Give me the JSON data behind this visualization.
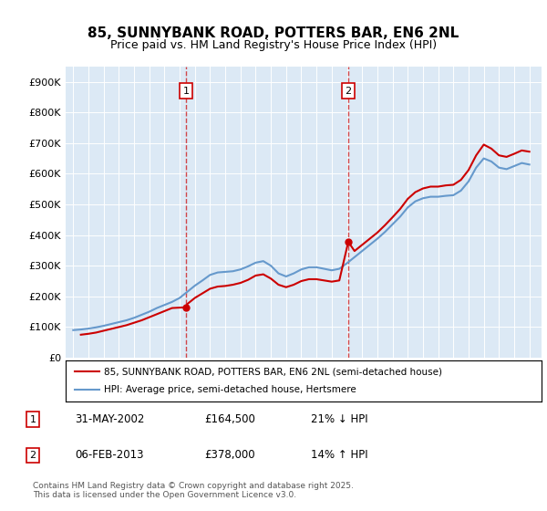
{
  "title": "85, SUNNYBANK ROAD, POTTERS BAR, EN6 2NL",
  "subtitle": "Price paid vs. HM Land Registry's House Price Index (HPI)",
  "legend_line1": "85, SUNNYBANK ROAD, POTTERS BAR, EN6 2NL (semi-detached house)",
  "legend_line2": "HPI: Average price, semi-detached house, Hertsmere",
  "footer": "Contains HM Land Registry data © Crown copyright and database right 2025.\nThis data is licensed under the Open Government Licence v3.0.",
  "sale1_date": "31-MAY-2002",
  "sale1_price": 164500,
  "sale1_pct": "21% ↓ HPI",
  "sale2_date": "06-FEB-2013",
  "sale2_price": 378000,
  "sale2_pct": "14% ↑ HPI",
  "vline1_x": 2002.42,
  "vline2_x": 2013.09,
  "ylim": [
    0,
    950000
  ],
  "xlim_left": 1994.5,
  "xlim_right": 2025.8,
  "background_color": "#dce9f5",
  "plot_bg_color": "#dce9f5",
  "red_color": "#cc0000",
  "blue_color": "#6699cc",
  "hpi_data_x": [
    1995,
    1995.5,
    1996,
    1996.5,
    1997,
    1997.5,
    1998,
    1998.5,
    1999,
    1999.5,
    2000,
    2000.5,
    2001,
    2001.5,
    2002,
    2002.5,
    2003,
    2003.5,
    2004,
    2004.5,
    2005,
    2005.5,
    2006,
    2006.5,
    2007,
    2007.5,
    2008,
    2008.5,
    2009,
    2009.5,
    2010,
    2010.5,
    2011,
    2011.5,
    2012,
    2012.5,
    2013,
    2013.5,
    2014,
    2014.5,
    2015,
    2015.5,
    2016,
    2016.5,
    2017,
    2017.5,
    2018,
    2018.5,
    2019,
    2019.5,
    2020,
    2020.5,
    2021,
    2021.5,
    2022,
    2022.5,
    2023,
    2023.5,
    2024,
    2024.5,
    2025
  ],
  "hpi_data_y": [
    90000,
    92000,
    95000,
    99000,
    104000,
    110000,
    116000,
    122000,
    130000,
    140000,
    150000,
    162000,
    172000,
    182000,
    195000,
    215000,
    235000,
    252000,
    270000,
    278000,
    280000,
    282000,
    288000,
    298000,
    310000,
    315000,
    300000,
    275000,
    265000,
    275000,
    288000,
    295000,
    295000,
    290000,
    285000,
    290000,
    308000,
    328000,
    348000,
    368000,
    388000,
    410000,
    435000,
    460000,
    490000,
    510000,
    520000,
    525000,
    525000,
    528000,
    530000,
    545000,
    575000,
    620000,
    650000,
    640000,
    620000,
    615000,
    625000,
    635000,
    630000
  ],
  "price_data_x": [
    1995.5,
    1996,
    1996.5,
    1997,
    1997.5,
    1998,
    1998.5,
    1999,
    1999.5,
    2000,
    2000.5,
    2001,
    2001.5,
    2002.42,
    2002.5,
    2003,
    2003.5,
    2004,
    2004.5,
    2005,
    2005.5,
    2006,
    2006.5,
    2007,
    2007.5,
    2008,
    2008.5,
    2009,
    2009.5,
    2010,
    2010.5,
    2011,
    2011.5,
    2012,
    2012.5,
    2013.09,
    2013.5,
    2014,
    2014.5,
    2015,
    2015.5,
    2016,
    2016.5,
    2017,
    2017.5,
    2018,
    2018.5,
    2019,
    2019.5,
    2020,
    2020.5,
    2021,
    2021.5,
    2022,
    2022.5,
    2023,
    2023.5,
    2024,
    2024.5,
    2025
  ],
  "price_data_y": [
    75000,
    78000,
    82000,
    88000,
    94000,
    100000,
    106000,
    114000,
    122000,
    132000,
    142000,
    152000,
    162000,
    164500,
    175000,
    195000,
    210000,
    225000,
    232000,
    234000,
    238000,
    244000,
    254000,
    268000,
    272000,
    258000,
    238000,
    230000,
    238000,
    250000,
    256000,
    256000,
    252000,
    248000,
    252000,
    378000,
    348000,
    368000,
    388000,
    408000,
    432000,
    458000,
    485000,
    518000,
    540000,
    552000,
    558000,
    558000,
    562000,
    564000,
    580000,
    612000,
    660000,
    695000,
    682000,
    660000,
    655000,
    665000,
    676000,
    672000
  ],
  "yticks": [
    0,
    100000,
    200000,
    300000,
    400000,
    500000,
    600000,
    700000,
    800000,
    900000
  ],
  "ytick_labels": [
    "£0",
    "£100K",
    "£200K",
    "£300K",
    "£400K",
    "£500K",
    "£600K",
    "£700K",
    "£800K",
    "£900K"
  ],
  "xticks": [
    1995,
    1996,
    1997,
    1998,
    1999,
    2000,
    2001,
    2002,
    2003,
    2004,
    2005,
    2006,
    2007,
    2008,
    2009,
    2010,
    2011,
    2012,
    2013,
    2014,
    2015,
    2016,
    2017,
    2018,
    2019,
    2020,
    2021,
    2022,
    2023,
    2024,
    2025
  ]
}
